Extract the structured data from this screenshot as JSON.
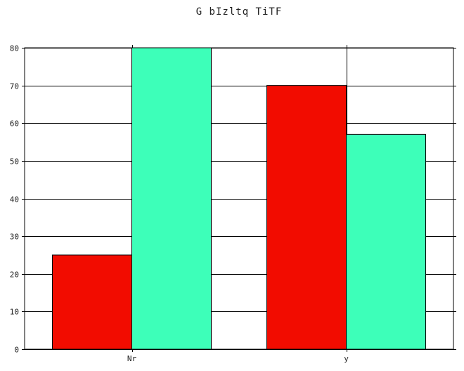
{
  "chart_data": {
    "type": "bar",
    "title": "G bIzltq  TiTF",
    "xlabel": "",
    "ylabel": "",
    "categories": [
      "Nr",
      "y"
    ],
    "series": [
      {
        "color": "#f20c00",
        "values": [
          25,
          70
        ]
      },
      {
        "color": "#3dffb9",
        "values": [
          80,
          57
        ]
      }
    ],
    "ylim": [
      0,
      80
    ],
    "yticks": [
      0,
      10,
      20,
      30,
      40,
      50,
      60,
      70,
      80
    ],
    "grid": true,
    "legend": "none"
  }
}
